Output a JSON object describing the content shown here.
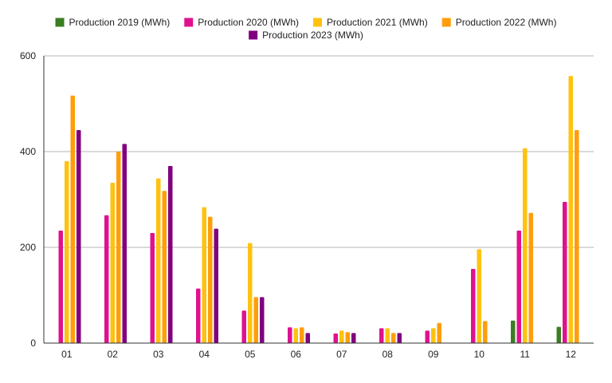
{
  "chart_data": {
    "type": "bar",
    "title": "",
    "xlabel": "",
    "ylabel": "",
    "ylim": [
      0,
      600
    ],
    "yticks": [
      0,
      200,
      400,
      600
    ],
    "grid": true,
    "legend_position": "top-center",
    "categories": [
      "01",
      "02",
      "03",
      "04",
      "05",
      "06",
      "07",
      "08",
      "09",
      "10",
      "11",
      "12"
    ],
    "series": [
      {
        "name": "Production 2019 (MWh)",
        "color": "#3a7d22",
        "values": [
          null,
          null,
          null,
          null,
          null,
          null,
          null,
          null,
          null,
          null,
          47,
          34
        ]
      },
      {
        "name": "Production 2020 (MWh)",
        "color": "#e0118f",
        "values": [
          235,
          267,
          230,
          114,
          68,
          33,
          20,
          31,
          26,
          155,
          235,
          295
        ]
      },
      {
        "name": "Production 2021 (MWh)",
        "color": "#ffc20e",
        "values": [
          380,
          335,
          344,
          284,
          209,
          31,
          26,
          31,
          31,
          196,
          407,
          558
        ]
      },
      {
        "name": "Production 2022 (MWh)",
        "color": "#ff9e0a",
        "values": [
          517,
          400,
          318,
          264,
          96,
          33,
          23,
          21,
          42,
          46,
          272,
          445
        ]
      },
      {
        "name": "Production 2023 (MWh)",
        "color": "#800080",
        "values": [
          445,
          416,
          370,
          239,
          96,
          21,
          21,
          21,
          null,
          null,
          null,
          null
        ]
      }
    ]
  }
}
